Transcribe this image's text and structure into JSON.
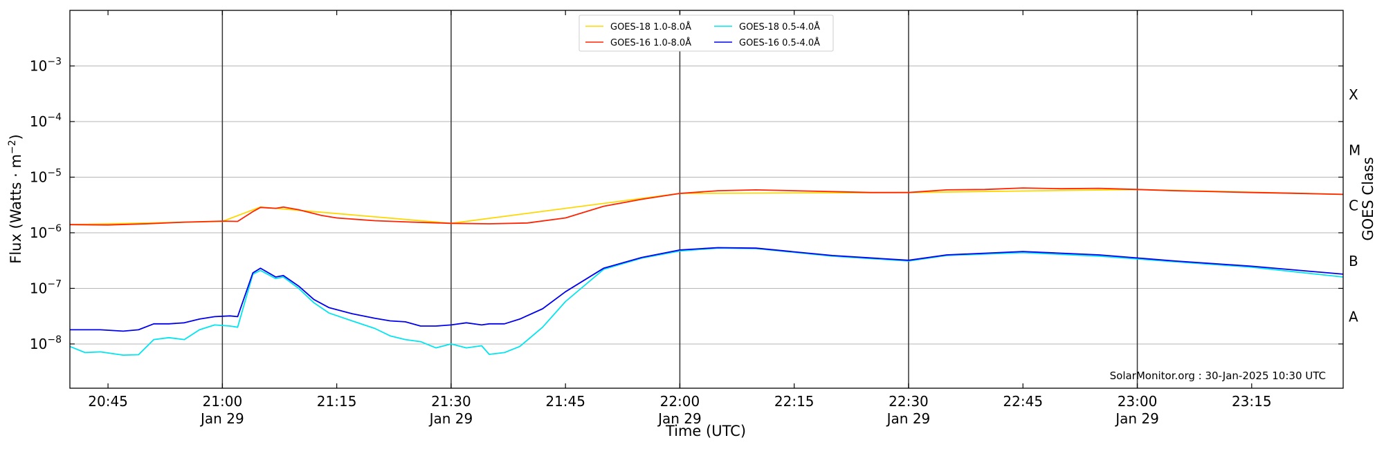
{
  "chart_data": {
    "type": "line",
    "xlabel": "Time (UTC)",
    "ylabel_main": "Flux (Watts · m",
    "ylabel_sup": "−2",
    "ylabel_end": ")",
    "ylabel_right": "GOES Class",
    "credit": "SolarMonitor.org : 30-Jan-2025 10:30 UTC",
    "y_scale": "log",
    "ylim": [
      1.6e-09,
      0.01
    ],
    "xlim": [
      "20:40",
      "23:27"
    ],
    "y_tick_labels": [
      {
        "base": "10",
        "exp": "−8",
        "value": 1e-08
      },
      {
        "base": "10",
        "exp": "−7",
        "value": 1e-07
      },
      {
        "base": "10",
        "exp": "−6",
        "value": 1e-06
      },
      {
        "base": "10",
        "exp": "−5",
        "value": 1e-05
      },
      {
        "base": "10",
        "exp": "−4",
        "value": 0.0001
      },
      {
        "base": "10",
        "exp": "−3",
        "value": 0.001
      }
    ],
    "goes_classes": [
      {
        "label": "A",
        "value": 3.16e-08
      },
      {
        "label": "B",
        "value": 3.16e-07
      },
      {
        "label": "C",
        "value": 3.16e-06
      },
      {
        "label": "M",
        "value": 3.16e-05
      },
      {
        "label": "X",
        "value": 0.000316
      }
    ],
    "x_ticks": [
      {
        "time": "20:45",
        "label": "20:45",
        "date": ""
      },
      {
        "time": "21:00",
        "label": "21:00",
        "date": "Jan 29"
      },
      {
        "time": "21:15",
        "label": "21:15",
        "date": ""
      },
      {
        "time": "21:30",
        "label": "21:30",
        "date": "Jan 29"
      },
      {
        "time": "21:45",
        "label": "21:45",
        "date": ""
      },
      {
        "time": "22:00",
        "label": "22:00",
        "date": "Jan 29"
      },
      {
        "time": "22:15",
        "label": "22:15",
        "date": ""
      },
      {
        "time": "22:30",
        "label": "22:30",
        "date": "Jan 29"
      },
      {
        "time": "22:45",
        "label": "22:45",
        "date": ""
      },
      {
        "time": "23:00",
        "label": "23:00",
        "date": "Jan 29"
      },
      {
        "time": "23:15",
        "label": "23:15",
        "date": ""
      }
    ],
    "vertical_lines": [
      "21:00",
      "21:30",
      "22:00",
      "22:30",
      "23:00"
    ],
    "grid": "horizontal",
    "legend_position": "top-center",
    "series": [
      {
        "name": "GOES-18 1.0-8.0Å",
        "color": "#ffd700",
        "x": [
          "20:40",
          "21:00",
          "21:05",
          "21:30",
          "22:00",
          "22:30",
          "23:00",
          "23:27"
        ],
        "y": [
          1.4e-06,
          1.6e-06,
          2.9e-06,
          1.48e-06,
          5.1e-06,
          5.3e-06,
          6e-06,
          4.9e-06
        ]
      },
      {
        "name": "GOES-16 1.0-8.0Å",
        "color": "#ff2200",
        "x": [
          "20:40",
          "20:45",
          "20:50",
          "20:55",
          "21:00",
          "21:02",
          "21:04",
          "21:05",
          "21:07",
          "21:08",
          "21:10",
          "21:13",
          "21:15",
          "21:20",
          "21:25",
          "21:30",
          "21:35",
          "21:40",
          "21:45",
          "21:50",
          "21:55",
          "22:00",
          "22:05",
          "22:10",
          "22:15",
          "22:20",
          "22:25",
          "22:30",
          "22:35",
          "22:40",
          "22:45",
          "22:50",
          "22:55",
          "23:00",
          "23:05",
          "23:10",
          "23:15",
          "23:20",
          "23:27"
        ],
        "y": [
          1.4e-06,
          1.38e-06,
          1.45e-06,
          1.55e-06,
          1.62e-06,
          1.6e-06,
          2.4e-06,
          2.85e-06,
          2.75e-06,
          2.9e-06,
          2.6e-06,
          2.05e-06,
          1.85e-06,
          1.65e-06,
          1.55e-06,
          1.48e-06,
          1.45e-06,
          1.5e-06,
          1.85e-06,
          3e-06,
          4e-06,
          5.1e-06,
          5.7e-06,
          5.9e-06,
          5.7e-06,
          5.5e-06,
          5.3e-06,
          5.3e-06,
          5.9e-06,
          6e-06,
          6.4e-06,
          6.2e-06,
          6.3e-06,
          6e-06,
          5.7e-06,
          5.5e-06,
          5.3e-06,
          5.15e-06,
          4.9e-06
        ]
      },
      {
        "name": "GOES-18 0.5-4.0Å",
        "color": "#00e5ee",
        "x": [
          "20:40",
          "20:42",
          "20:44",
          "20:47",
          "20:49",
          "20:51",
          "20:53",
          "20:55",
          "20:57",
          "20:59",
          "21:01",
          "21:02",
          "21:04",
          "21:05",
          "21:07",
          "21:08",
          "21:10",
          "21:12",
          "21:14",
          "21:17",
          "21:20",
          "21:22",
          "21:24",
          "21:26",
          "21:28",
          "21:30",
          "21:32",
          "21:34",
          "21:35",
          "21:37",
          "21:39",
          "21:42",
          "21:45",
          "21:50",
          "21:55",
          "22:00",
          "22:05",
          "22:10",
          "22:20",
          "22:30",
          "22:35",
          "22:45",
          "22:55",
          "23:05",
          "23:15",
          "23:27"
        ],
        "y": [
          9e-09,
          7e-09,
          7.2e-09,
          6.3e-09,
          6.4e-09,
          1.2e-08,
          1.3e-08,
          1.2e-08,
          1.8e-08,
          2.2e-08,
          2.1e-08,
          2e-08,
          1.8e-07,
          2.1e-07,
          1.5e-07,
          1.6e-07,
          1e-07,
          5.5e-08,
          3.6e-08,
          2.6e-08,
          1.9e-08,
          1.4e-08,
          1.2e-08,
          1.1e-08,
          8.5e-09,
          1e-08,
          8.5e-09,
          9.3e-09,
          6.5e-09,
          7e-09,
          9e-09,
          2e-08,
          5.8e-08,
          2.2e-07,
          3.5e-07,
          4.7e-07,
          5.3e-07,
          5.2e-07,
          3.8e-07,
          3.1e-07,
          3.9e-07,
          4.4e-07,
          3.8e-07,
          3e-07,
          2.4e-07,
          1.6e-07
        ]
      },
      {
        "name": "GOES-16 0.5-4.0Å",
        "color": "#0000ee",
        "x": [
          "20:40",
          "20:42",
          "20:44",
          "20:47",
          "20:49",
          "20:51",
          "20:53",
          "20:55",
          "20:57",
          "20:59",
          "21:01",
          "21:02",
          "21:04",
          "21:05",
          "21:07",
          "21:08",
          "21:10",
          "21:12",
          "21:14",
          "21:17",
          "21:20",
          "21:22",
          "21:24",
          "21:26",
          "21:28",
          "21:30",
          "21:32",
          "21:34",
          "21:35",
          "21:37",
          "21:39",
          "21:42",
          "21:45",
          "21:50",
          "21:55",
          "22:00",
          "22:05",
          "22:10",
          "22:20",
          "22:30",
          "22:35",
          "22:45",
          "22:55",
          "23:05",
          "23:15",
          "23:27"
        ],
        "y": [
          1.8e-08,
          1.8e-08,
          1.8e-08,
          1.7e-08,
          1.8e-08,
          2.3e-08,
          2.3e-08,
          2.4e-08,
          2.8e-08,
          3.1e-08,
          3.2e-08,
          3.1e-08,
          1.9e-07,
          2.3e-07,
          1.6e-07,
          1.7e-07,
          1.1e-07,
          6.3e-08,
          4.5e-08,
          3.5e-08,
          2.9e-08,
          2.6e-08,
          2.5e-08,
          2.1e-08,
          2.1e-08,
          2.2e-08,
          2.4e-08,
          2.2e-08,
          2.3e-08,
          2.3e-08,
          2.8e-08,
          4.3e-08,
          8.7e-08,
          2.3e-07,
          3.6e-07,
          4.9e-07,
          5.4e-07,
          5.3e-07,
          3.9e-07,
          3.2e-07,
          4e-07,
          4.6e-07,
          4e-07,
          3.1e-07,
          2.5e-07,
          1.8e-07
        ]
      }
    ]
  }
}
